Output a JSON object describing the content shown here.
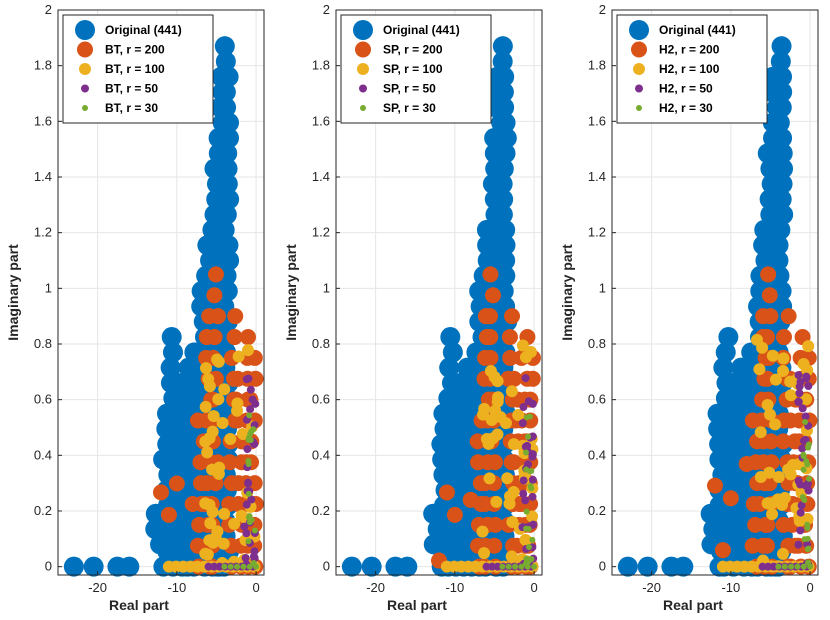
{
  "chart_data": [
    {
      "type": "scatter",
      "title": "",
      "xlabel": "Real part",
      "ylabel": "Imaginary part",
      "xlim": [
        -25,
        1
      ],
      "ylim": [
        -0.03,
        2
      ],
      "xticks": [
        -20,
        -10,
        0
      ],
      "yticks": [
        0,
        0.2,
        0.4,
        0.6,
        0.8,
        1,
        1.2,
        1.4,
        1.6,
        1.8,
        2
      ],
      "grid": true,
      "legend_position": "top-left",
      "series": [
        {
          "name": "Original (441)",
          "color": "#0072BD",
          "marker_size": "large"
        },
        {
          "name": "BT, r = 200",
          "color": "#D95319",
          "marker_size": "medium-large"
        },
        {
          "name": "BT, r = 100",
          "color": "#EDB120",
          "marker_size": "medium"
        },
        {
          "name": "BT, r = 50",
          "color": "#7E2F8E",
          "marker_size": "small"
        },
        {
          "name": "BT, r = 30",
          "color": "#77AC30",
          "marker_size": "smallest"
        }
      ]
    },
    {
      "type": "scatter",
      "title": "",
      "xlabel": "Real part",
      "ylabel": "Imaginary part",
      "xlim": [
        -25,
        1
      ],
      "ylim": [
        -0.03,
        2
      ],
      "xticks": [
        -20,
        -10,
        0
      ],
      "yticks": [
        0,
        0.2,
        0.4,
        0.6,
        0.8,
        1,
        1.2,
        1.4,
        1.6,
        1.8,
        2
      ],
      "grid": true,
      "legend_position": "top-left",
      "series": [
        {
          "name": "Original (441)",
          "color": "#0072BD",
          "marker_size": "large"
        },
        {
          "name": "SP, r = 200",
          "color": "#D95319",
          "marker_size": "medium-large"
        },
        {
          "name": "SP, r = 100",
          "color": "#EDB120",
          "marker_size": "medium"
        },
        {
          "name": "SP, r = 50",
          "color": "#7E2F8E",
          "marker_size": "small"
        },
        {
          "name": "SP, r = 30",
          "color": "#77AC30",
          "marker_size": "smallest"
        }
      ]
    },
    {
      "type": "scatter",
      "title": "",
      "xlabel": "Real part",
      "ylabel": "Imaginary part",
      "xlim": [
        -25,
        1
      ],
      "ylim": [
        -0.03,
        2
      ],
      "xticks": [
        -20,
        -10,
        0
      ],
      "yticks": [
        0,
        0.2,
        0.4,
        0.6,
        0.8,
        1,
        1.2,
        1.4,
        1.6,
        1.8,
        2
      ],
      "grid": true,
      "legend_position": "top-left",
      "series": [
        {
          "name": "Original (441)",
          "color": "#0072BD",
          "marker_size": "large"
        },
        {
          "name": "H2, r = 200",
          "color": "#D95319",
          "marker_size": "medium-large"
        },
        {
          "name": "H2, r = 100",
          "color": "#EDB120",
          "marker_size": "medium"
        },
        {
          "name": "H2, r = 50",
          "color": "#7E2F8E",
          "marker_size": "small"
        },
        {
          "name": "H2, r = 30",
          "color": "#77AC30",
          "marker_size": "smallest"
        }
      ]
    }
  ]
}
